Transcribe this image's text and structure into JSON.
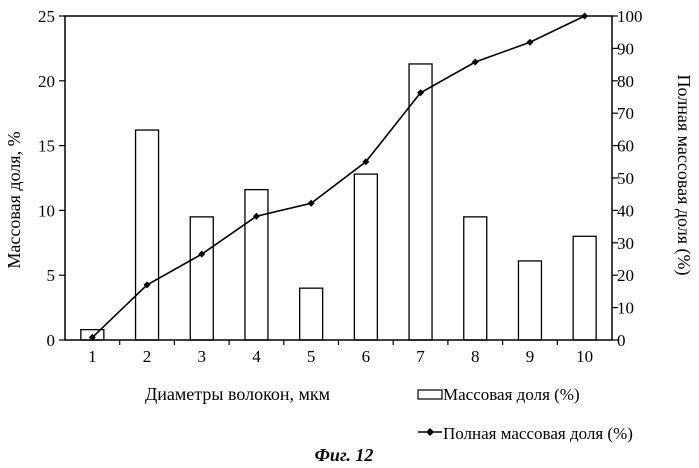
{
  "chart_data": {
    "type": "bar",
    "categories": [
      "1",
      "2",
      "3",
      "4",
      "5",
      "6",
      "7",
      "8",
      "9",
      "10"
    ],
    "series": [
      {
        "name": "Массовая доля (%)",
        "type": "bar",
        "axis": "left",
        "values": [
          0.8,
          16.2,
          9.5,
          11.6,
          4.0,
          12.8,
          21.3,
          9.5,
          6.1,
          8.0
        ]
      },
      {
        "name": "Полная массовая доля (%)",
        "type": "line",
        "axis": "right",
        "values": [
          0.8,
          17,
          26.5,
          38.2,
          42.2,
          55,
          76.3,
          85.8,
          91.9,
          100
        ]
      }
    ],
    "xlabel": "Диаметры волокон, мкм",
    "ylabel": "Массовая доля, %",
    "y2label": "Полная массовая доля (%)",
    "ylim": [
      0,
      25
    ],
    "yticks": [
      "0",
      "5",
      "10",
      "15",
      "20",
      "25"
    ],
    "y2lim": [
      0,
      100
    ],
    "y2ticks": [
      "0",
      "10",
      "20",
      "30",
      "40",
      "50",
      "60",
      "70",
      "80",
      "90",
      "100"
    ],
    "grid": false,
    "legend": "bottom-right"
  },
  "caption": "Фиг. 12"
}
